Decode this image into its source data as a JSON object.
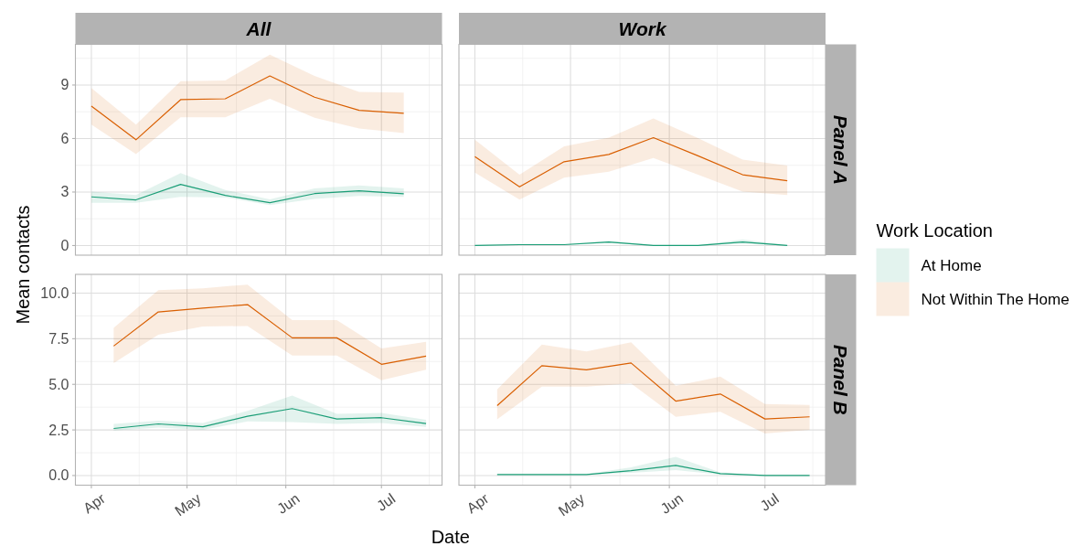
{
  "chart_data": [
    {
      "type": "line",
      "title": "All",
      "x": [
        "--04-01",
        "--04-15",
        "--04-29",
        "--05-13",
        "--05-27",
        "--06-10",
        "--06-24",
        "--07-08"
      ],
      "series": [
        {
          "color": "#1b9e77",
          "values": [
            2.73,
            2.56,
            3.43,
            2.81,
            2.4,
            2.91,
            3.07,
            2.9
          ],
          "lower": [
            2.39,
            2.39,
            2.73,
            2.69,
            2.27,
            2.61,
            2.78,
            2.73
          ],
          "upper": [
            3.03,
            2.83,
            4.06,
            3.12,
            2.59,
            3.2,
            3.37,
            3.2
          ]
        },
        {
          "color": "#d95f02",
          "values": [
            7.82,
            5.93,
            8.18,
            8.23,
            9.51,
            8.32,
            7.58,
            7.41
          ],
          "lower": [
            6.78,
            5.13,
            7.19,
            7.19,
            8.23,
            7.16,
            6.56,
            6.31
          ],
          "upper": [
            8.83,
            6.78,
            9.22,
            9.26,
            10.7,
            9.51,
            8.61,
            8.57
          ]
        }
      ],
      "xlim": [
        "--03-27",
        "--07-20"
      ],
      "xticks": [
        {
          "value": "--04-01",
          "label": null
        },
        {
          "value": "--05-01",
          "label": null
        },
        {
          "value": "--06-01",
          "label": null
        },
        {
          "value": "--07-01",
          "label": null
        }
      ],
      "ylim": [
        -0.54,
        11.28
      ],
      "yticks": [
        0,
        3,
        6,
        9
      ],
      "grid": true,
      "tick_labels": "y"
    },
    {
      "type": "line",
      "title": "Work",
      "y2label": "Panel A",
      "legend": "right",
      "legend_title": "Work Location",
      "x": [
        "--04-01",
        "--04-15",
        "--04-29",
        "--05-13",
        "--05-27",
        "--06-10",
        "--06-24",
        "--07-08"
      ],
      "series": [
        {
          "name": "At Home",
          "color": "#1b9e77",
          "values": [
            0,
            0.05,
            0.05,
            0.2,
            0,
            0,
            0.2,
            0
          ],
          "lower": [
            0,
            0.03,
            0.03,
            0.14,
            0,
            0,
            0.1,
            0
          ],
          "upper": [
            0.02,
            0.07,
            0.07,
            0.26,
            0.02,
            0.02,
            0.34,
            0.02
          ]
        },
        {
          "name": "Not Within The Home",
          "color": "#d95f02",
          "values": [
            4.99,
            3.29,
            4.7,
            5.11,
            6.05,
            5.03,
            3.97,
            3.63
          ],
          "lower": [
            4.09,
            2.57,
            3.8,
            4.14,
            4.91,
            3.97,
            3.03,
            2.83
          ],
          "upper": [
            5.93,
            3.97,
            5.56,
            6.05,
            7.12,
            6.02,
            4.82,
            4.48
          ]
        }
      ],
      "xlim": [
        "--03-27",
        "--07-20"
      ],
      "xticks": [
        {
          "value": "--04-01",
          "label": null
        },
        {
          "value": "--05-01",
          "label": null
        },
        {
          "value": "--06-01",
          "label": null
        },
        {
          "value": "--07-01",
          "label": null
        }
      ],
      "ylim": [
        -0.54,
        11.28
      ],
      "yticks": [
        0,
        3,
        6,
        9
      ],
      "grid": true,
      "tick_labels": false
    },
    {
      "type": "line",
      "xlabel": "Date",
      "ylabel": "Mean contacts",
      "x": [
        "--04-08",
        "--04-22",
        "--05-06",
        "--05-20",
        "--06-03",
        "--06-17",
        "--07-01",
        "--07-15"
      ],
      "series": [
        {
          "color": "#1b9e77",
          "values": [
            2.58,
            2.83,
            2.67,
            3.25,
            3.67,
            3.1,
            3.17,
            2.85
          ],
          "lower": [
            2.47,
            2.63,
            2.5,
            2.97,
            2.93,
            2.83,
            2.88,
            2.67
          ],
          "upper": [
            2.83,
            3.0,
            2.88,
            3.55,
            4.38,
            3.38,
            3.43,
            3.05
          ]
        },
        {
          "color": "#d95f02",
          "values": [
            7.1,
            8.97,
            9.18,
            9.37,
            7.55,
            7.55,
            6.1,
            6.55
          ],
          "lower": [
            6.17,
            7.72,
            8.17,
            8.2,
            6.58,
            6.58,
            5.22,
            5.8
          ],
          "upper": [
            8.1,
            10.17,
            10.27,
            10.47,
            8.52,
            8.52,
            6.97,
            7.33
          ]
        }
      ],
      "xlim": [
        "--03-27",
        "--07-20"
      ],
      "xticks": [
        {
          "value": "--04-01",
          "label": "Apr"
        },
        {
          "value": "--05-01",
          "label": "May"
        },
        {
          "value": "--06-01",
          "label": "Jun"
        },
        {
          "value": "--07-01",
          "label": "Jul"
        }
      ],
      "ylim": [
        -0.53,
        11.03
      ],
      "yticks": [
        {
          "value": 0,
          "label": "0.0"
        },
        2.5,
        {
          "value": 5,
          "label": "5.0"
        },
        7.5,
        {
          "value": 10,
          "label": "10.0"
        }
      ],
      "grid": true
    },
    {
      "type": "line",
      "y2label": "Panel B",
      "x": [
        "--04-08",
        "--04-22",
        "--05-06",
        "--05-20",
        "--06-03",
        "--06-17",
        "--07-01",
        "--07-15"
      ],
      "series": [
        {
          "color": "#1b9e77",
          "values": [
            0.05,
            0.05,
            0.05,
            0.27,
            0.55,
            0.1,
            0,
            0
          ],
          "lower": [
            0.03,
            0.03,
            0.03,
            0.15,
            0.3,
            0.05,
            0,
            0
          ],
          "upper": [
            0.07,
            0.07,
            0.08,
            0.45,
            1.02,
            0.17,
            0.02,
            0
          ]
        },
        {
          "color": "#d95f02",
          "values": [
            3.83,
            6.02,
            5.8,
            6.17,
            4.08,
            4.47,
            3.1,
            3.22
          ],
          "lower": [
            3.08,
            4.88,
            4.88,
            5.05,
            3.22,
            3.5,
            2.3,
            2.5
          ],
          "upper": [
            4.72,
            7.18,
            6.8,
            7.3,
            4.92,
            5.42,
            3.92,
            3.87
          ]
        }
      ],
      "xlim": [
        "--03-27",
        "--07-20"
      ],
      "xticks": [
        {
          "value": "--04-01",
          "label": "Apr"
        },
        {
          "value": "--05-01",
          "label": "May"
        },
        {
          "value": "--06-01",
          "label": "Jun"
        },
        {
          "value": "--07-01",
          "label": "Jul"
        }
      ],
      "ylim": [
        -0.53,
        11.03
      ],
      "yticks": [
        {
          "value": 0,
          "label": null
        },
        2.5,
        {
          "value": 5,
          "label": null
        },
        7.5,
        {
          "value": 10,
          "label": null
        }
      ],
      "grid": true,
      "tick_labels": "x"
    }
  ]
}
